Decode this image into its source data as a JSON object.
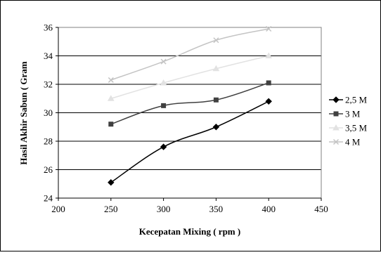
{
  "chart_data": {
    "type": "line",
    "title": "",
    "xlabel": "Kecepatan Mixing ( rpm )",
    "ylabel": "Hasil Akhir Sabun ( Gram",
    "xlim": [
      200,
      450
    ],
    "ylim": [
      24,
      36
    ],
    "x_ticks": [
      200,
      250,
      300,
      350,
      400,
      450
    ],
    "y_ticks": [
      24,
      26,
      28,
      30,
      32,
      34,
      36
    ],
    "grid": "horizontal",
    "legend_position": "right",
    "x": [
      250,
      300,
      350,
      400
    ],
    "series": [
      {
        "name": "2,5 M",
        "values": [
          25.1,
          27.6,
          29.0,
          30.8
        ],
        "color": "#000000",
        "marker": "diamond"
      },
      {
        "name": "3 M",
        "values": [
          29.2,
          30.5,
          30.9,
          32.1
        ],
        "color": "#404040",
        "marker": "square"
      },
      {
        "name": "3,5 M",
        "values": [
          31.0,
          32.1,
          33.1,
          34.0
        ],
        "color": "#e2e2e2",
        "marker": "triangle"
      },
      {
        "name": "4 M",
        "values": [
          32.3,
          33.6,
          35.1,
          35.9
        ],
        "color": "#c4c4c4",
        "marker": "x"
      }
    ]
  }
}
